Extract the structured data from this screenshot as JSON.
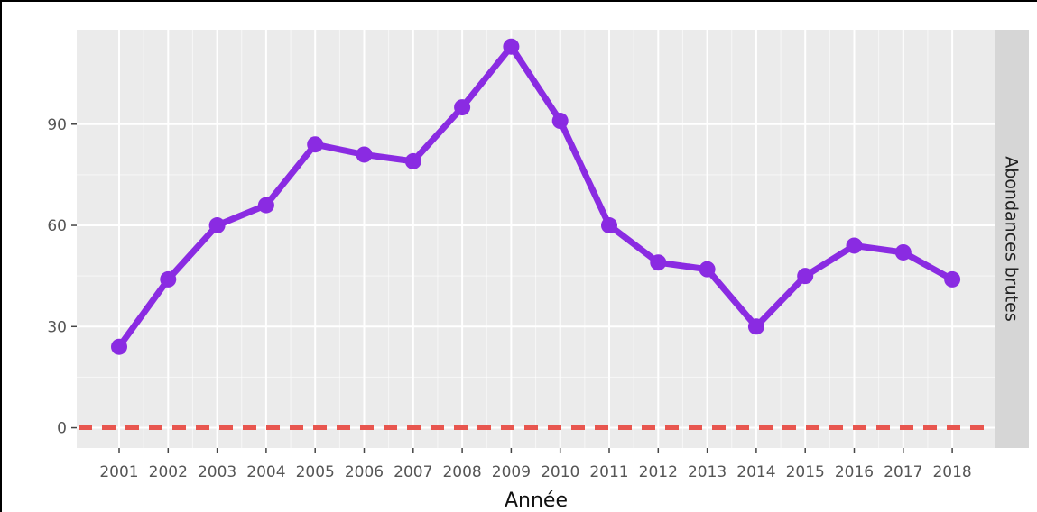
{
  "chart_data": {
    "type": "line",
    "title": "",
    "xlabel": "Année",
    "ylabel": "",
    "facet_label": "Abondances brutes",
    "x": [
      2001,
      2002,
      2003,
      2004,
      2005,
      2006,
      2007,
      2008,
      2009,
      2010,
      2011,
      2012,
      2013,
      2014,
      2015,
      2016,
      2017,
      2018
    ],
    "x_tick_labels": [
      "2001",
      "2002",
      "2003",
      "2004",
      "2005",
      "2006",
      "2007",
      "2008",
      "2009",
      "2010",
      "2011",
      "2012",
      "2013",
      "2014",
      "2015",
      "2016",
      "2017",
      "2018"
    ],
    "series": [
      {
        "values": [
          24,
          44,
          60,
          66,
          84,
          81,
          79,
          95,
          113,
          91,
          60,
          49,
          47,
          30,
          45,
          54,
          52,
          44
        ]
      }
    ],
    "y_ticks": [
      0,
      30,
      60,
      90
    ],
    "y_tick_labels": [
      "0",
      "30",
      "60",
      "90"
    ],
    "ylim": [
      -6,
      118
    ],
    "reference_line": {
      "y": 0,
      "style": "dashed"
    },
    "grid": true,
    "legend": "none",
    "colors": {
      "line": "#8a2be2",
      "reference_line": "#e8564f",
      "panel": "#ebebeb",
      "gridline": "#ffffff",
      "strip": "#d6d6d6"
    }
  }
}
